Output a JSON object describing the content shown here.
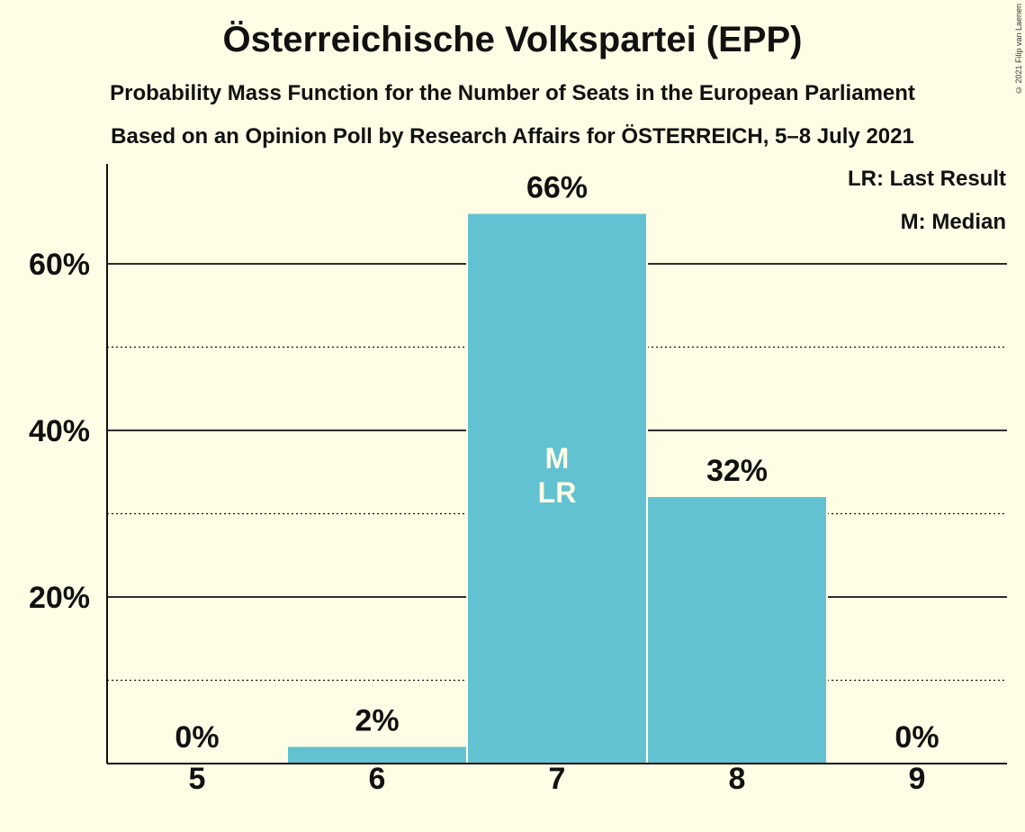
{
  "header": {
    "title": "Österreichische Volkspartei (EPP)",
    "subtitle": "Probability Mass Function for the Number of Seats in the European Parliament",
    "source": "Based on an Opinion Poll by Research Affairs for ÖSTERREICH, 5–8 July 2021",
    "copyright": "© 2021 Filip van Laenen"
  },
  "legend": {
    "last_result": "LR: Last Result",
    "median": "M: Median"
  },
  "chart_data": {
    "type": "bar",
    "categories": [
      "5",
      "6",
      "7",
      "8",
      "9"
    ],
    "values": [
      0,
      2,
      66,
      32,
      0
    ],
    "value_labels": [
      "0%",
      "2%",
      "66%",
      "32%",
      "0%"
    ],
    "markers": [
      "",
      "",
      "M\nLR",
      "",
      ""
    ],
    "ylim": [
      0,
      72
    ],
    "y_ticks": [
      20,
      40,
      60
    ],
    "y_tick_labels": [
      "20%",
      "40%",
      "60%"
    ],
    "minor_gridlines": [
      10,
      30,
      50
    ],
    "bar_color": "#63c2d1",
    "background_color": "#fffde5",
    "grid": true,
    "legend_position": "top-right"
  }
}
